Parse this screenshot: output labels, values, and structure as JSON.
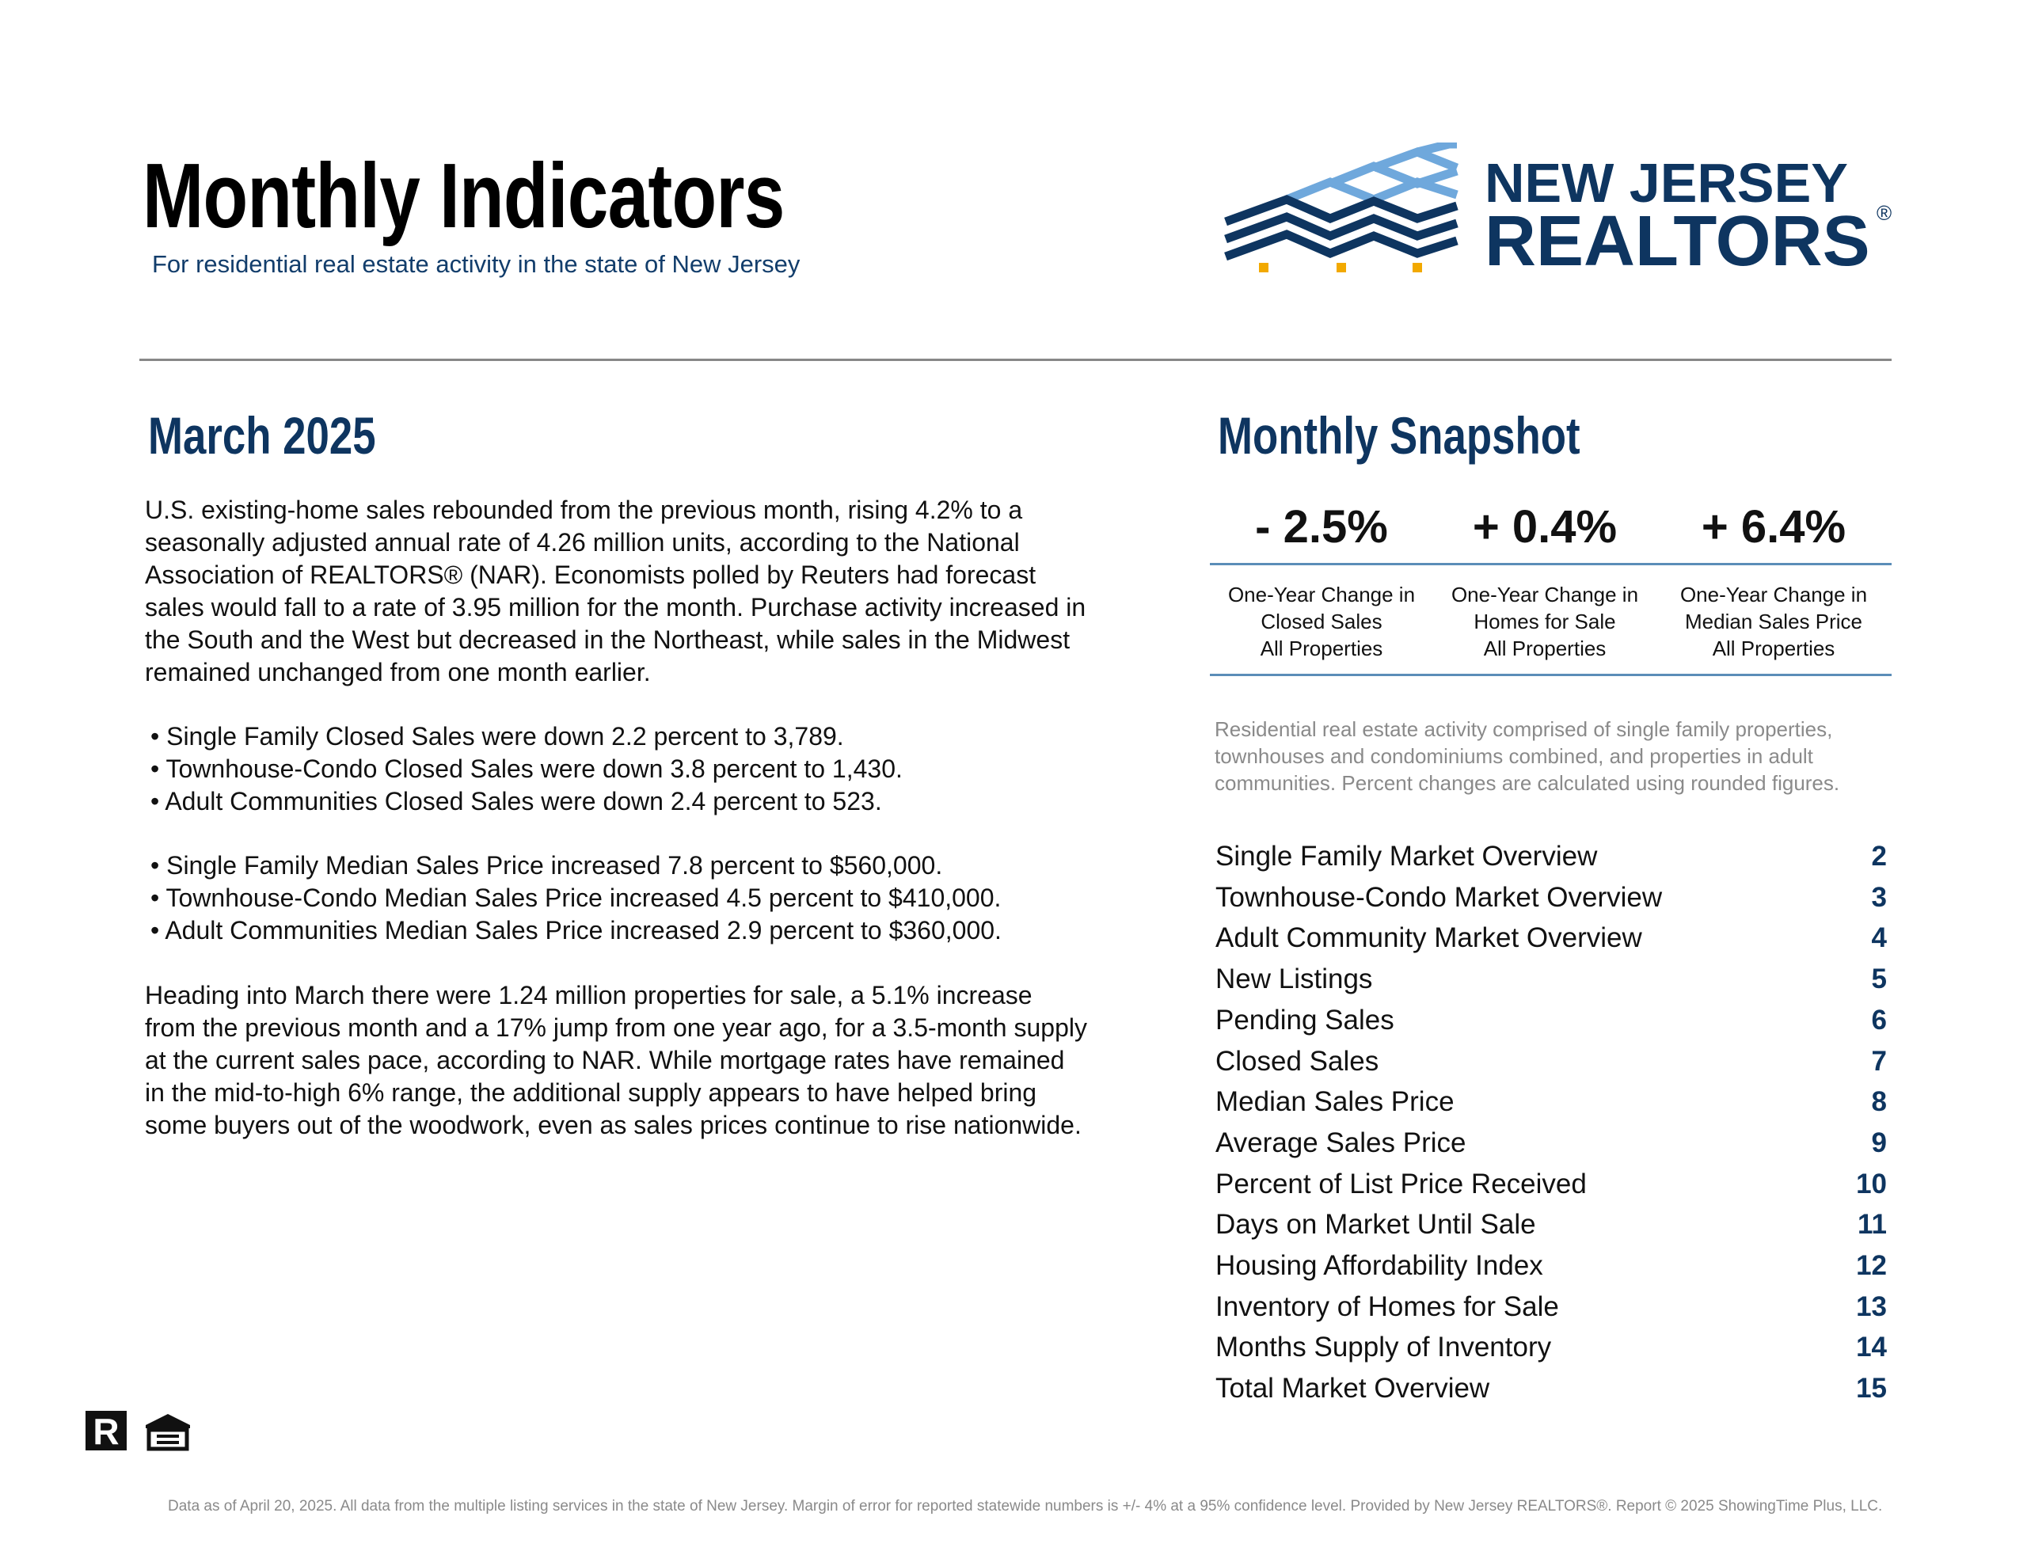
{
  "header": {
    "title": "Monthly Indicators",
    "subtitle": "For residential real estate activity in the state of New Jersey"
  },
  "logo": {
    "line1": "NEW JERSEY",
    "line2": "REALTORS",
    "mark": "®"
  },
  "left": {
    "heading": "March 2025",
    "intro": "U.S. existing-home sales rebounded from the previous month, rising 4.2% to a seasonally adjusted annual rate of 4.26 million units, according to the National Association of REALTORS® (NAR). Economists polled by Reuters had forecast sales would fall to a rate of 3.95 million for the month. Purchase activity increased in the South and the West but decreased in the Northeast, while sales in the Midwest remained unchanged from one month earlier.",
    "bullets_sales": [
      "Single Family Closed Sales were down 2.2 percent to 3,789.",
      "Townhouse-Condo Closed Sales were down 3.8 percent to 1,430.",
      "Adult Communities Closed Sales were down 2.4 percent to 523."
    ],
    "bullets_prices": [
      "Single Family Median Sales Price increased 7.8 percent to $560,000.",
      "Townhouse-Condo Median Sales Price increased 4.5 percent to $410,000.",
      "Adult Communities Median Sales Price increased 2.9 percent to $360,000."
    ],
    "closing": "Heading into March there were 1.24 million properties for sale, a 5.1% increase from the previous month and a 17% jump from one year ago, for a 3.5-month supply at the current sales pace, according to NAR. While mortgage rates have remained in the mid-to-high 6% range, the additional supply appears to have helped bring some buyers out of the woodwork, even as sales prices continue to rise nationwide."
  },
  "snapshot": {
    "heading": "Monthly Snapshot",
    "items": [
      {
        "value": "- 2.5%",
        "label1": "One-Year Change in",
        "label2": "Closed Sales",
        "label3": "All Properties"
      },
      {
        "value": "+ 0.4%",
        "label1": "One-Year Change in",
        "label2": "Homes for Sale",
        "label3": "All Properties"
      },
      {
        "value": "+ 6.4%",
        "label1": "One-Year Change in",
        "label2": "Median Sales Price",
        "label3": "All Properties"
      }
    ],
    "note": "Residential real estate activity comprised of single family properties, townhouses and condominiums combined, and properties in adult communities. Percent changes are calculated using rounded figures."
  },
  "toc": [
    {
      "title": "Single Family Market Overview",
      "page": "2"
    },
    {
      "title": "Townhouse-Condo Market Overview",
      "page": "3"
    },
    {
      "title": "Adult Community Market Overview",
      "page": "4"
    },
    {
      "title": "New Listings",
      "page": "5"
    },
    {
      "title": "Pending Sales",
      "page": "6"
    },
    {
      "title": "Closed Sales",
      "page": "7"
    },
    {
      "title": "Median Sales Price",
      "page": "8"
    },
    {
      "title": "Average Sales Price",
      "page": "9"
    },
    {
      "title": "Percent of List Price Received",
      "page": "10"
    },
    {
      "title": "Days on Market Until Sale",
      "page": "11"
    },
    {
      "title": "Housing Affordability Index",
      "page": "12"
    },
    {
      "title": "Inventory of Homes for Sale",
      "page": "13"
    },
    {
      "title": "Months Supply of Inventory",
      "page": "14"
    },
    {
      "title": "Total Market Overview",
      "page": "15"
    }
  ],
  "footer": "Data as of April 20, 2025. All data from the multiple listing services in the state of New Jersey. Margin of error for reported statewide numbers is +/- 4% at a 95% confidence level. Provided by New Jersey REALTORS®. Report © 2025 ShowingTime Plus, LLC."
}
